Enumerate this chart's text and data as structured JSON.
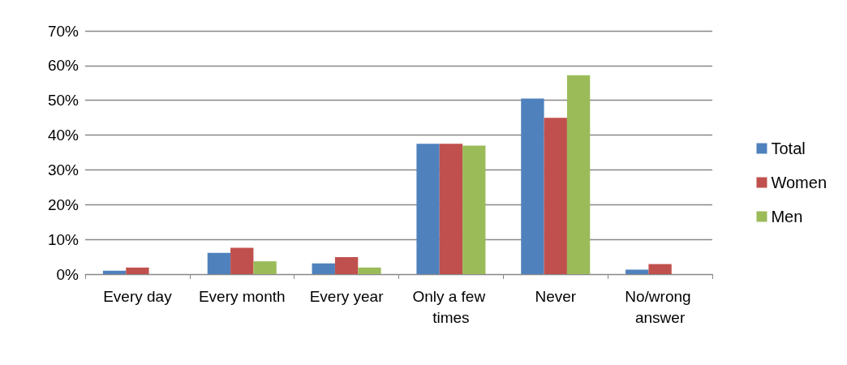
{
  "chart_data": {
    "type": "bar",
    "categories": [
      "Every day",
      "Every month",
      "Every year",
      "Only a few times",
      "Never",
      "No/wrong answer"
    ],
    "series": [
      {
        "name": "Total",
        "color": "#4f81bd",
        "values": [
          1.0,
          6.1,
          3.1,
          37.5,
          50.5,
          1.3
        ]
      },
      {
        "name": "Women",
        "color": "#c0504d",
        "values": [
          1.9,
          7.6,
          4.9,
          37.5,
          45.0,
          2.9
        ]
      },
      {
        "name": "Men",
        "color": "#9bbb59",
        "values": [
          0,
          3.7,
          1.9,
          37.0,
          57.2,
          0
        ]
      }
    ],
    "ylim": [
      0,
      70
    ],
    "yticks": [
      {
        "value": 0,
        "label": "0%"
      },
      {
        "value": 10,
        "label": "10%"
      },
      {
        "value": 20,
        "label": "20%"
      },
      {
        "value": 30,
        "label": "30%"
      },
      {
        "value": 40,
        "label": "40%"
      },
      {
        "value": 50,
        "label": "50%"
      },
      {
        "value": 60,
        "label": "60%"
      },
      {
        "value": 70,
        "label": "70%"
      }
    ],
    "grid": "y",
    "legend": "right"
  }
}
